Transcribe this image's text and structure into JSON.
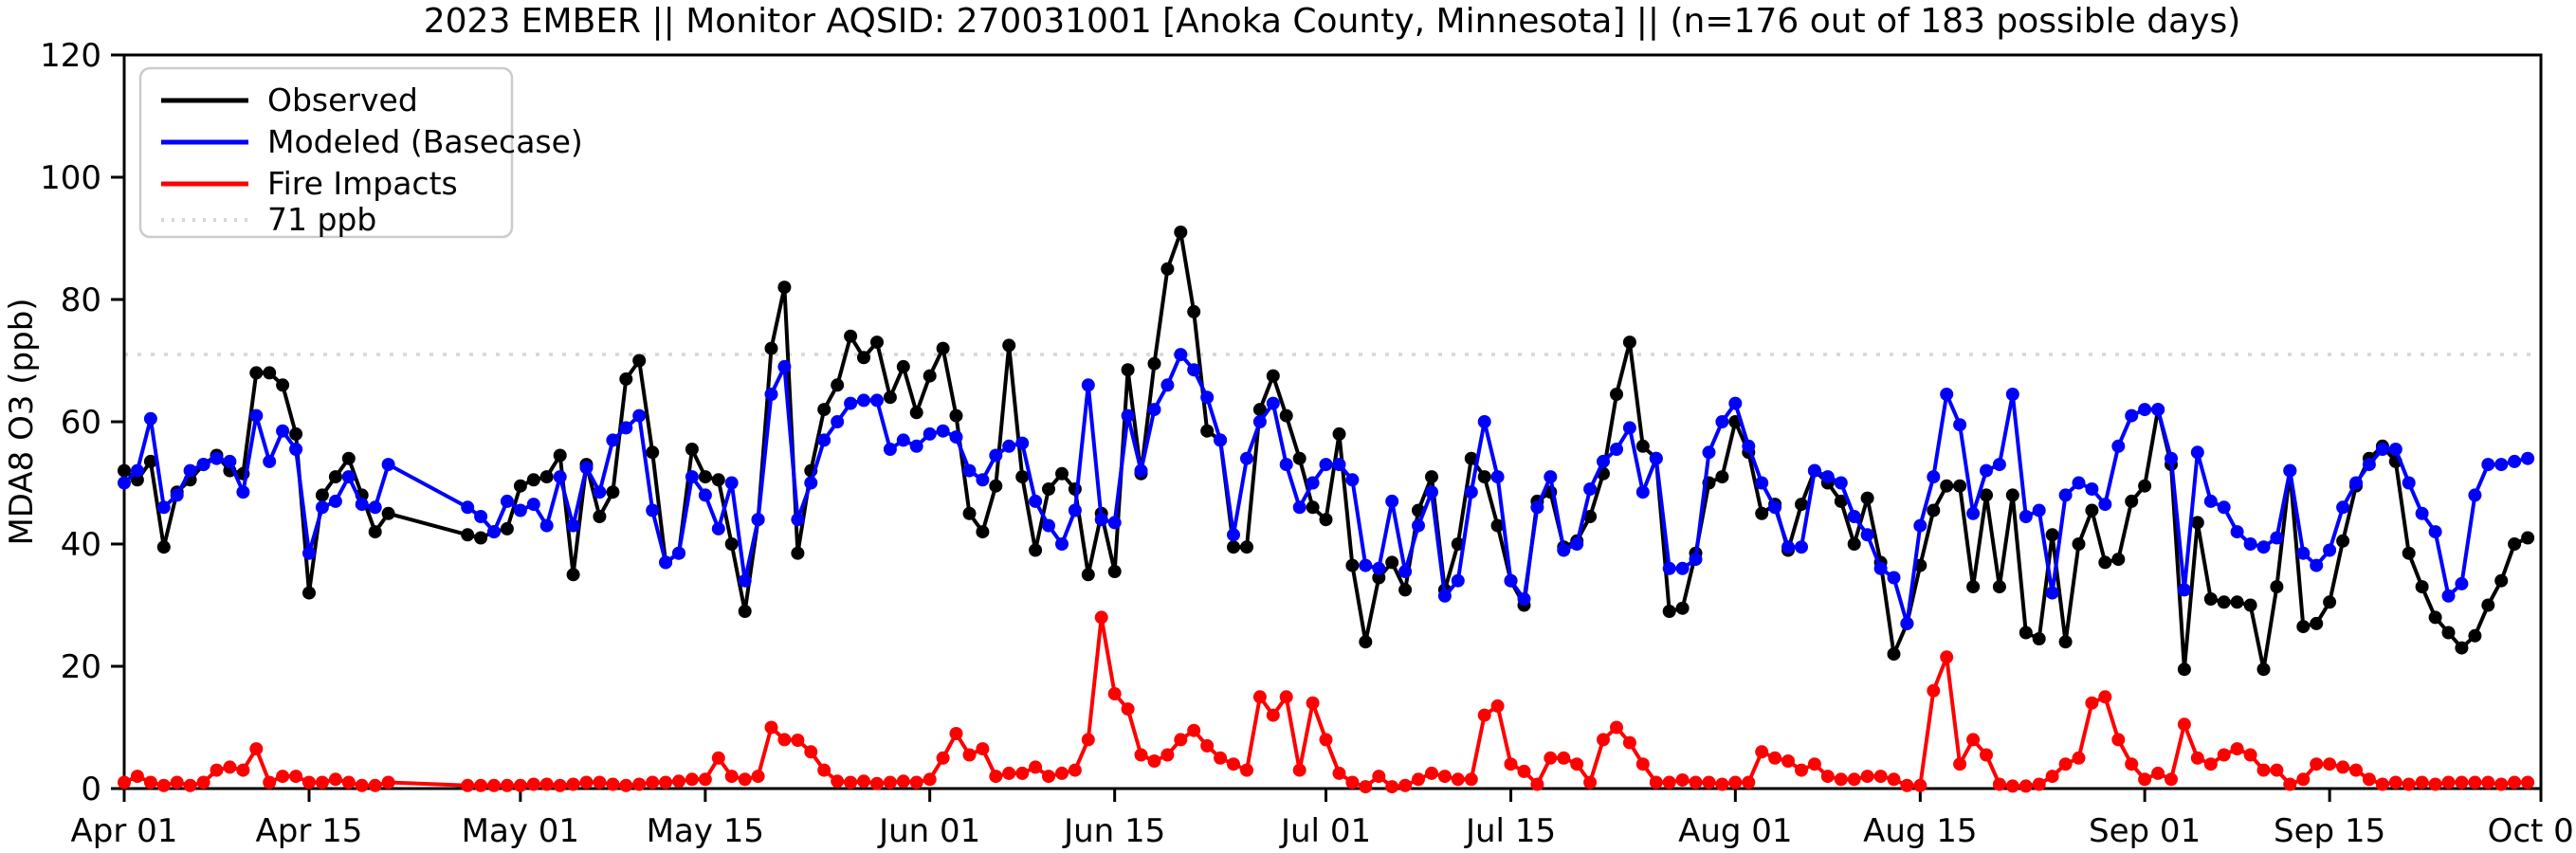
{
  "chart_data": {
    "type": "line",
    "title": "2023 EMBER || Monitor AQSID: 270031001 [Anoka County, Minnesota] || (n=176 out of 183 possible days)",
    "ylabel": "MDA8 O3 (ppb)",
    "ylim": [
      0,
      120
    ],
    "y_ticks": [
      0,
      20,
      40,
      60,
      80,
      100,
      120
    ],
    "n_days": 183,
    "x_range": [
      "Apr 01",
      "Oct 01"
    ],
    "x_ticks": [
      {
        "label": "Apr 01",
        "day": 0
      },
      {
        "label": "Apr 15",
        "day": 14
      },
      {
        "label": "May 01",
        "day": 30
      },
      {
        "label": "May 15",
        "day": 44
      },
      {
        "label": "Jun 01",
        "day": 61
      },
      {
        "label": "Jun 15",
        "day": 75
      },
      {
        "label": "Jul 01",
        "day": 91
      },
      {
        "label": "Jul 15",
        "day": 105
      },
      {
        "label": "Aug 01",
        "day": 122
      },
      {
        "label": "Aug 15",
        "day": 136
      },
      {
        "label": "Sep 01",
        "day": 153
      },
      {
        "label": "Sep 15",
        "day": 167
      },
      {
        "label": "Oct 01",
        "day": 183
      }
    ],
    "reference_line": {
      "label": "71 ppb",
      "value": 71,
      "color": "#d6d6d6"
    },
    "legend_position": "upper left",
    "grid": false,
    "series": [
      {
        "name": "Observed",
        "color": "#000000",
        "values": [
          52,
          50.5,
          53.5,
          39.5,
          48.5,
          50.5,
          53,
          54.5,
          52,
          51.5,
          68,
          68,
          66,
          58,
          32,
          48,
          51,
          54,
          48,
          42,
          45,
          null,
          null,
          null,
          null,
          null,
          41.5,
          41,
          42,
          42.5,
          49.5,
          50.5,
          51,
          54.5,
          35,
          53,
          44.5,
          48.5,
          67,
          70,
          55,
          37,
          38.5,
          55.5,
          51,
          50.5,
          40,
          29,
          44,
          72,
          82,
          38.5,
          52,
          62,
          66,
          74,
          70.5,
          73,
          64,
          69,
          61.5,
          67.5,
          72,
          61,
          45,
          42,
          49.5,
          72.5,
          51,
          39,
          49,
          51.5,
          49,
          35,
          45,
          35.5,
          68.5,
          51.5,
          69.5,
          85,
          91,
          78,
          58.5,
          57,
          39.5,
          39.5,
          62,
          67.5,
          61,
          54,
          46,
          44,
          58,
          36.5,
          24,
          34.5,
          37,
          32.5,
          45.5,
          51,
          32.5,
          40,
          54,
          51,
          43,
          34,
          30,
          47,
          48.5,
          39.5,
          40.5,
          44.5,
          51.5,
          64.5,
          73,
          56,
          54,
          29,
          29.5,
          38.5,
          50,
          51,
          60,
          55,
          45,
          46.5,
          39,
          46.5,
          52,
          50,
          47,
          40,
          47.5,
          37,
          22,
          27,
          36.5,
          45.5,
          49.5,
          49.5,
          33,
          48,
          33,
          48,
          25.5,
          24.5,
          41.5,
          24,
          40,
          45.5,
          37,
          37.5,
          47,
          49.5,
          62,
          53,
          19.5,
          43.5,
          31,
          30.5,
          30.5,
          30,
          19.5,
          33,
          52,
          26.5,
          27,
          30.5,
          40.5,
          49.5,
          54,
          56,
          53.5,
          38.5,
          33,
          28,
          25.5,
          23,
          25,
          30,
          34,
          40,
          41
        ]
      },
      {
        "name": "Modeled (Basecase)",
        "color": "#0000ff",
        "values": [
          50,
          52,
          60.5,
          46,
          48,
          52,
          53,
          54,
          53.5,
          48.5,
          61,
          53.5,
          58.5,
          55.5,
          38.5,
          46,
          47,
          51,
          46.5,
          46,
          53,
          null,
          null,
          null,
          null,
          null,
          46,
          44.5,
          42,
          47,
          45.5,
          46.5,
          43,
          51,
          43,
          52.5,
          48.5,
          57,
          59,
          61,
          45.5,
          37,
          38.5,
          51,
          48,
          42.5,
          50,
          34,
          44,
          64.5,
          69,
          44,
          50,
          57,
          60,
          63,
          63.5,
          63.5,
          55.5,
          57,
          56,
          58,
          58.5,
          57.5,
          52,
          50.5,
          54.5,
          56,
          56.5,
          47,
          43,
          40,
          45.5,
          66,
          44,
          43.5,
          61,
          52,
          62,
          66,
          71,
          68.5,
          64,
          57,
          41.5,
          54,
          60,
          63,
          53,
          46,
          50,
          53,
          53,
          50.5,
          36.5,
          36,
          47,
          35.5,
          43,
          48.5,
          31.5,
          34,
          48.5,
          60,
          51,
          34,
          31,
          46,
          51,
          39,
          40,
          49,
          53.5,
          55.5,
          59,
          48.5,
          54,
          36,
          36,
          37.5,
          55,
          60,
          63,
          56,
          50,
          46,
          39.5,
          39.5,
          52,
          51,
          50,
          44.5,
          41.5,
          36,
          34.5,
          27,
          43,
          51,
          64.5,
          59.5,
          45,
          52,
          53,
          64.5,
          44.5,
          45.5,
          32,
          48,
          50,
          49,
          46.5,
          56,
          61,
          62,
          62,
          54,
          32.5,
          55,
          47,
          46,
          42,
          40,
          39.5,
          41,
          52,
          38.5,
          36.5,
          39,
          46,
          50,
          53,
          55.5,
          55.5,
          50,
          45,
          42,
          31.5,
          33.5,
          48,
          53,
          53,
          53.5,
          54
        ]
      },
      {
        "name": "Fire Impacts",
        "color": "#ff0000",
        "values": [
          1,
          2,
          1,
          0.5,
          1,
          0.5,
          1,
          3,
          3.5,
          3,
          6.5,
          1,
          2,
          2,
          1,
          1,
          1.5,
          1,
          0.5,
          0.5,
          1,
          null,
          null,
          null,
          null,
          null,
          0.5,
          0.5,
          0.5,
          0.5,
          0.5,
          0.7,
          0.7,
          0.5,
          0.7,
          1,
          1,
          0.7,
          0.5,
          0.7,
          1,
          1,
          1.2,
          1.5,
          1.5,
          5,
          2,
          1.5,
          2,
          10,
          8,
          7.9,
          6,
          3,
          1.2,
          1,
          1.2,
          0.8,
          1,
          1.2,
          1,
          1.5,
          5,
          9,
          5.5,
          6.5,
          2,
          2.5,
          2.5,
          3.5,
          2,
          2.5,
          3,
          8,
          28,
          15.5,
          13,
          5.5,
          4.5,
          5.5,
          8,
          9.5,
          7,
          5,
          4,
          3,
          15,
          12,
          15,
          3,
          14,
          8,
          2.5,
          1,
          0.3,
          2,
          0.3,
          0.5,
          1.5,
          2.5,
          2,
          1.5,
          1.5,
          12,
          13.5,
          4,
          2.8,
          0.7,
          5,
          5,
          4,
          1,
          8,
          10,
          7.5,
          4,
          1,
          1,
          1.4,
          1,
          1,
          0.7,
          1,
          1,
          6,
          5,
          4.5,
          3,
          4,
          2,
          1.5,
          1.5,
          2,
          2,
          1.5,
          0.5,
          0.5,
          16,
          21.5,
          4,
          8,
          5.5,
          0.7,
          0.4,
          0.4,
          0.7,
          2,
          4,
          5,
          14,
          15,
          8,
          4,
          1.5,
          2.5,
          1.5,
          10.5,
          5,
          4,
          5.5,
          6.5,
          5.5,
          3,
          3,
          0.7,
          1.5,
          4,
          4,
          3.5,
          3,
          1.5,
          0.7,
          1,
          0.7,
          1,
          0.7,
          1,
          1,
          1,
          1,
          0.7,
          1,
          1
        ]
      }
    ]
  },
  "legend": {
    "items": [
      {
        "label": "Observed"
      },
      {
        "label": "Modeled (Basecase)"
      },
      {
        "label": "Fire Impacts"
      },
      {
        "label": "71 ppb"
      }
    ]
  }
}
